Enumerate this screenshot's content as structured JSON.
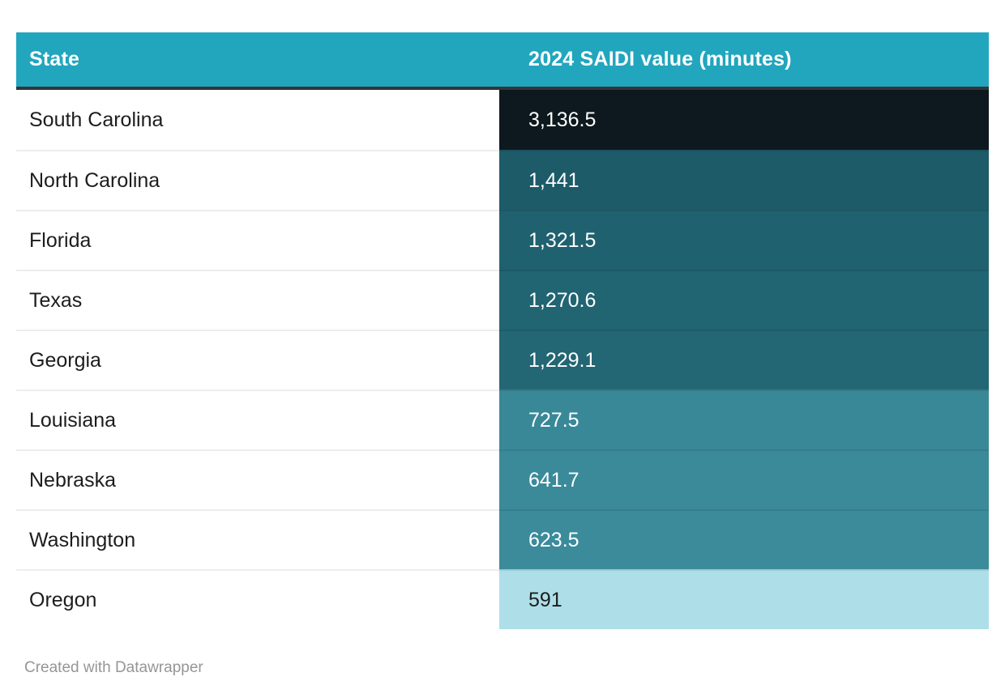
{
  "colors": {
    "header_bg": "#21a6bd",
    "header_text": "#ffffff",
    "header_border": "#333638",
    "row_separator": "#ededed",
    "credit_text": "#969696"
  },
  "table": {
    "columns": [
      "State",
      "2024 SAIDI value (minutes)"
    ],
    "rows": [
      {
        "state": "South Carolina",
        "value": "3,136.5",
        "bg": "#0d191e",
        "fg": "#ffffff"
      },
      {
        "state": "North Carolina",
        "value": "1,441",
        "bg": "#1d5b69",
        "fg": "#ffffff"
      },
      {
        "state": "Florida",
        "value": "1,321.5",
        "bg": "#20616f",
        "fg": "#ffffff"
      },
      {
        "state": "Texas",
        "value": "1,270.6",
        "bg": "#216472",
        "fg": "#ffffff"
      },
      {
        "state": "Georgia",
        "value": "1,229.1",
        "bg": "#236674",
        "fg": "#ffffff"
      },
      {
        "state": "Louisiana",
        "value": "727.5",
        "bg": "#398898",
        "fg": "#ffffff"
      },
      {
        "state": "Nebraska",
        "value": "641.7",
        "bg": "#3a8a9a",
        "fg": "#ffffff"
      },
      {
        "state": "Washington",
        "value": "623.5",
        "bg": "#3b8b9b",
        "fg": "#ffffff"
      },
      {
        "state": "Oregon",
        "value": "591",
        "bg": "#aedfe9",
        "fg": "#1d1d1d"
      }
    ]
  },
  "credit": "Created with Datawrapper",
  "chart_data": {
    "type": "table",
    "columns": [
      "State",
      "2024 SAIDI value (minutes)"
    ],
    "categories": [
      "South Carolina",
      "North Carolina",
      "Florida",
      "Texas",
      "Georgia",
      "Louisiana",
      "Nebraska",
      "Washington",
      "Oregon"
    ],
    "values": [
      3136.5,
      1441,
      1321.5,
      1270.6,
      1229.1,
      727.5,
      641.7,
      623.5,
      591
    ],
    "value_display": [
      "3,136.5",
      "1,441",
      "1,321.5",
      "1,270.6",
      "1,229.1",
      "727.5",
      "641.7",
      "623.5",
      "591"
    ],
    "heatmap_on_value_column": true,
    "heatmap_scale": "dark (high) to light (low) teal",
    "title": "",
    "source_note": "Created with Datawrapper"
  }
}
